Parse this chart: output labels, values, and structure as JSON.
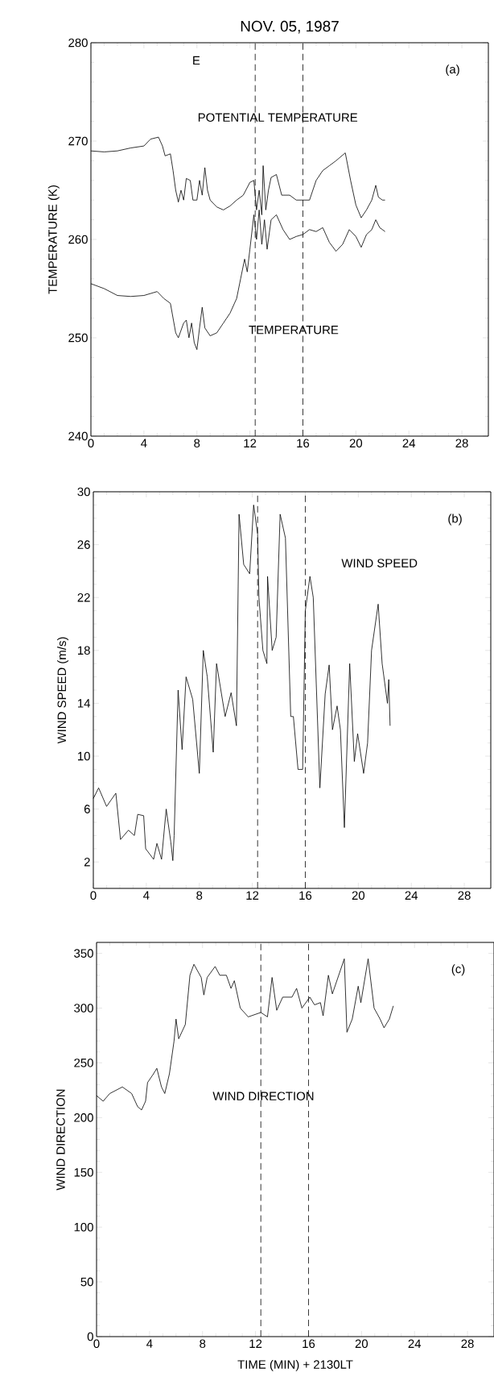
{
  "chart_data": [
    {
      "type": "line",
      "title": "NOV. 05, 1987",
      "ylabel": "TEMPERATURE (K)",
      "xlim": [
        0,
        30
      ],
      "xticks": [
        0,
        4,
        8,
        12,
        16,
        20,
        24,
        28
      ],
      "ylim": [
        240,
        280
      ],
      "yticks": [
        240,
        250,
        260,
        270,
        280
      ],
      "annotations": [
        "(a)",
        "E"
      ],
      "ref_lines": [
        {
          "axis": "x",
          "value": 12.4,
          "line_style": "dashed"
        },
        {
          "axis": "x",
          "value": 16,
          "line_style": "dashed"
        }
      ],
      "series": [
        {
          "name": "POTENTIAL TEMPERATURE",
          "color": "#000000",
          "x": [
            0,
            1,
            2,
            3,
            4,
            4.5,
            5.1,
            5.4,
            5.6,
            6.0,
            6.2,
            6.4,
            6.6,
            6.8,
            7.0,
            7.2,
            7.5,
            7.7,
            8.0,
            8.2,
            8.4,
            8.6,
            8.8,
            9.0,
            9.5,
            10,
            10.5,
            11,
            11.5,
            12,
            12.3,
            12.5,
            12.7,
            12.9,
            13.0,
            13.2,
            13.4,
            13.6,
            14,
            14.4,
            15,
            15.5,
            16,
            16.5,
            17,
            17.5,
            18,
            18.5,
            19.2,
            19.6,
            20.0,
            20.4,
            20.8,
            21.2,
            21.5,
            21.7,
            22,
            22.2
          ],
          "values": [
            269,
            268.9,
            269,
            269.3,
            269.5,
            270.2,
            270.4,
            269.5,
            268.5,
            268.7,
            267,
            265,
            263.8,
            265,
            264,
            266.2,
            266,
            264,
            264,
            266,
            264.5,
            267.3,
            265,
            264,
            263.3,
            263,
            263.4,
            264,
            264.5,
            265.8,
            266,
            263,
            265,
            262.5,
            267.5,
            263,
            265,
            266.3,
            266.6,
            264.5,
            264.5,
            264,
            264,
            264,
            266,
            267,
            267.5,
            268,
            268.8,
            266,
            263.5,
            262.2,
            263,
            264,
            265.5,
            264.3,
            264,
            264
          ]
        },
        {
          "name": "TEMPERATURE",
          "color": "#000000",
          "x": [
            0,
            1,
            2,
            3,
            4,
            5,
            5.5,
            6.0,
            6.2,
            6.4,
            6.6,
            7.0,
            7.2,
            7.4,
            7.6,
            7.8,
            8.0,
            8.2,
            8.4,
            8.6,
            9.0,
            9.5,
            10,
            10.5,
            11,
            11.3,
            11.6,
            11.8,
            12,
            12.3,
            12.5,
            12.7,
            12.9,
            13.1,
            13.3,
            13.6,
            14,
            14.5,
            15,
            15.5,
            16,
            16.5,
            17,
            17.5,
            18,
            18.5,
            19,
            19.5,
            20,
            20.4,
            20.8,
            21.2,
            21.5,
            21.8,
            22.2
          ],
          "values": [
            255.5,
            255,
            254.3,
            254.2,
            254.3,
            254.7,
            254,
            253.5,
            252,
            250.5,
            250,
            251.5,
            251.8,
            250,
            251.5,
            249.5,
            248.8,
            251,
            253.1,
            251,
            250.2,
            250.5,
            251.5,
            252.5,
            254,
            256,
            258,
            256.7,
            259,
            262.5,
            260,
            263,
            259.5,
            262,
            259,
            262,
            262.5,
            261,
            260,
            260.3,
            260.5,
            261,
            260.8,
            261.2,
            259.7,
            258.8,
            259.5,
            261,
            260.3,
            259.2,
            260.5,
            261,
            262,
            261.2,
            260.8
          ]
        }
      ]
    },
    {
      "type": "line",
      "ylabel": "WIND SPEED (m/s)",
      "xlim": [
        0,
        30
      ],
      "xticks": [
        0,
        4,
        8,
        12,
        16,
        20,
        24,
        28
      ],
      "ylim": [
        0,
        30
      ],
      "yticks": [
        2,
        6,
        10,
        14,
        18,
        22,
        26,
        30
      ],
      "annotations": [
        "(b)"
      ],
      "ref_lines": [
        {
          "axis": "x",
          "value": 12.4,
          "line_style": "dashed"
        },
        {
          "axis": "x",
          "value": 16,
          "line_style": "dashed"
        }
      ],
      "series": [
        {
          "name": "WIND SPEED",
          "color": "#000000",
          "x": [
            0,
            0.4,
            1.0,
            1.7,
            2.05,
            2.65,
            3.1,
            3.35,
            3.8,
            3.95,
            4.55,
            4.8,
            5.15,
            5.5,
            5.85,
            6.0,
            6.1,
            6.4,
            6.7,
            7.0,
            7.5,
            8.0,
            8.3,
            8.6,
            9.05,
            9.3,
            9.95,
            10.4,
            10.8,
            11.0,
            11.35,
            11.8,
            12.1,
            12.4,
            12.5,
            12.8,
            13.1,
            13.15,
            13.5,
            13.8,
            14.1,
            14.5,
            14.9,
            15.1,
            15.45,
            15.8,
            16.0,
            16.35,
            16.6,
            17.1,
            17.5,
            17.8,
            18.05,
            18.4,
            18.65,
            18.95,
            19.35,
            19.7,
            19.95,
            20.4,
            20.7,
            21.0,
            21.5,
            21.8,
            22.2,
            22.3,
            22.4
          ],
          "values": [
            6.8,
            7.6,
            6.2,
            7.2,
            3.7,
            4.4,
            4,
            5.6,
            5.5,
            3,
            2.2,
            3.4,
            2.2,
            6,
            3.5,
            2.1,
            4,
            15,
            10.5,
            16,
            14.3,
            8.7,
            18,
            16,
            10.3,
            17,
            13,
            14.8,
            12.3,
            28.3,
            24.5,
            23.8,
            29,
            26.8,
            22,
            18,
            17,
            23.6,
            18,
            19,
            28.3,
            26.5,
            13,
            13,
            9,
            9,
            21,
            23.6,
            22,
            7.6,
            14.7,
            16.9,
            12,
            13.8,
            12,
            4.6,
            17,
            9.6,
            11.7,
            8.7,
            11,
            18,
            21.5,
            17,
            14,
            15.8,
            12.3
          ]
        }
      ]
    },
    {
      "type": "line",
      "ylabel": "WIND DIRECTION",
      "xlabel": "TIME (MIN) + 2130LT",
      "xlim": [
        0,
        30
      ],
      "xticks": [
        0,
        4,
        8,
        12,
        16,
        20,
        24,
        28
      ],
      "ylim": [
        0,
        360
      ],
      "yticks": [
        0,
        50,
        100,
        150,
        200,
        250,
        300,
        350
      ],
      "annotations": [
        "(c)"
      ],
      "ref_lines": [
        {
          "axis": "x",
          "value": 12.4,
          "line_style": "dashed"
        },
        {
          "axis": "x",
          "value": 16,
          "line_style": "dashed"
        }
      ],
      "series": [
        {
          "name": "WIND DIRECTION",
          "color": "#000000",
          "x": [
            0,
            0.5,
            1.0,
            1.95,
            2.65,
            3.1,
            3.4,
            3.7,
            3.85,
            4.3,
            4.55,
            4.9,
            5.15,
            5.5,
            5.85,
            6.0,
            6.2,
            6.7,
            7.05,
            7.35,
            7.9,
            8.1,
            8.35,
            8.95,
            9.3,
            9.8,
            10.15,
            10.4,
            10.85,
            11.45,
            12.4,
            12.9,
            13.25,
            13.6,
            14.05,
            14.75,
            15.1,
            15.5,
            16.1,
            16.45,
            16.9,
            17.1,
            17.5,
            17.8,
            18.7,
            18.9,
            19.3,
            19.75,
            19.95,
            20.5,
            20.95,
            21.4,
            21.7,
            22.1,
            22.4
          ],
          "values": [
            220,
            215,
            222,
            228,
            222,
            210,
            207,
            215,
            232,
            240,
            245,
            228,
            222,
            240,
            270,
            290,
            272,
            285,
            330,
            340,
            328,
            312,
            328,
            338,
            330,
            330,
            318,
            325,
            300,
            292,
            296,
            292,
            328,
            298,
            310,
            310,
            318,
            300,
            310,
            303,
            305,
            293,
            330,
            313,
            345,
            278,
            290,
            320,
            305,
            345,
            300,
            290,
            282,
            290,
            302
          ]
        }
      ]
    }
  ]
}
